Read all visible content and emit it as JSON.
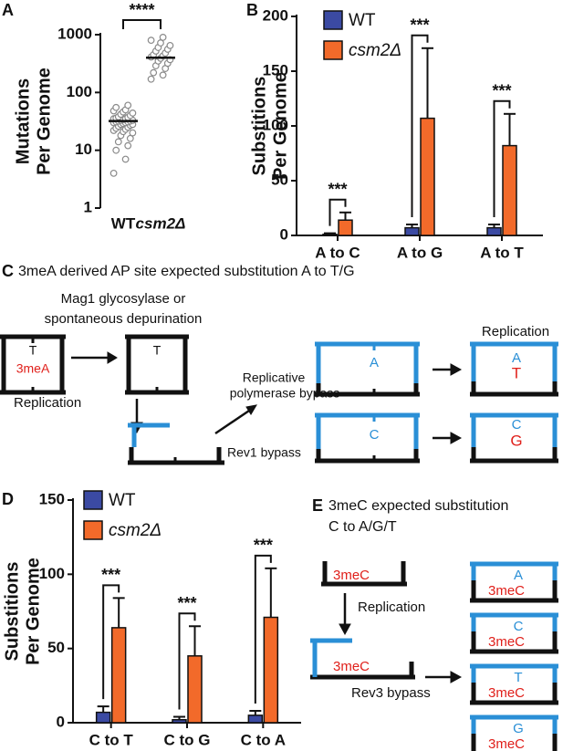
{
  "chart_data": [
    {
      "type": "scatter",
      "panel": "A",
      "ylabel": [
        "Mutations",
        "Per Genome"
      ],
      "log_scale": true,
      "ylim": [
        1,
        1000
      ],
      "yticks": [
        1,
        10,
        100,
        1000
      ],
      "significance": "****",
      "color": "#8a8a8a",
      "groups": [
        {
          "name": "WT",
          "median": 32,
          "values": [
            4,
            7,
            10,
            12,
            14,
            16,
            18,
            20,
            21,
            22,
            23,
            24,
            25,
            26,
            27,
            28,
            28,
            29,
            30,
            30,
            31,
            31,
            32,
            32,
            33,
            33,
            34,
            35,
            35,
            36,
            37,
            38,
            40,
            42,
            44,
            46,
            48,
            50,
            55,
            60
          ]
        },
        {
          "name": "csm2Δ",
          "median": 400,
          "values": [
            170,
            200,
            220,
            260,
            290,
            320,
            350,
            370,
            390,
            410,
            430,
            450,
            480,
            520,
            560,
            600,
            650,
            720,
            800,
            900
          ]
        }
      ]
    },
    {
      "type": "bar",
      "panel": "B",
      "ylabel": [
        "Substitions",
        "Per Genome"
      ],
      "ylim": [
        0,
        200
      ],
      "yticks": [
        0,
        50,
        100,
        150,
        200
      ],
      "categories": [
        "A to C",
        "A to G",
        "A to T"
      ],
      "significance": [
        "***",
        "***",
        "***"
      ],
      "series": [
        {
          "name": "WT",
          "color": "#3b4aa3",
          "values": [
            1,
            7,
            7
          ],
          "errors": [
            1,
            3,
            3
          ]
        },
        {
          "name": "csm2Δ",
          "color": "#f26a2a",
          "values": [
            14,
            107,
            82
          ],
          "errors": [
            7,
            64,
            29
          ]
        }
      ]
    },
    {
      "type": "bar",
      "panel": "D",
      "ylabel": [
        "Substitions",
        "Per Genome"
      ],
      "ylim": [
        0,
        150
      ],
      "yticks": [
        0,
        50,
        100,
        150
      ],
      "categories": [
        "C to T",
        "C to G",
        "C to A"
      ],
      "significance": [
        "***",
        "***",
        "***"
      ],
      "series": [
        {
          "name": "WT",
          "color": "#3b4aa3",
          "values": [
            7,
            2,
            5
          ],
          "errors": [
            4,
            2,
            3
          ]
        },
        {
          "name": "csm2Δ",
          "color": "#f26a2a",
          "values": [
            64,
            45,
            71
          ],
          "errors": [
            20,
            20,
            33
          ]
        }
      ]
    }
  ],
  "panel_c": {
    "panel": "C",
    "title": "3meA derived AP site expected substitution A to T/G",
    "step1": [
      "Mag1 glycosylase or",
      "spontaneous depurination"
    ],
    "lesion": "3meA",
    "opposite": "T",
    "replication_left": "Replication",
    "replicative": [
      "Replicative",
      "polymerase bypass"
    ],
    "rev1": "Rev1 bypass",
    "replication_right": "Replication",
    "insert_a": "A",
    "insert_c": "C",
    "result_1": [
      "A",
      "T"
    ],
    "result_2": [
      "C",
      "G"
    ]
  },
  "panel_e": {
    "panel": "E",
    "title": [
      "3meC expected substitution",
      "C to A/G/T"
    ],
    "lesion": "3meC",
    "replication": "Replication",
    "rev3": "Rev3 bypass",
    "results": [
      [
        "A",
        "3meC"
      ],
      [
        "C",
        "3meC"
      ],
      [
        "T",
        "3meC"
      ],
      [
        "G",
        "3meC"
      ]
    ]
  }
}
